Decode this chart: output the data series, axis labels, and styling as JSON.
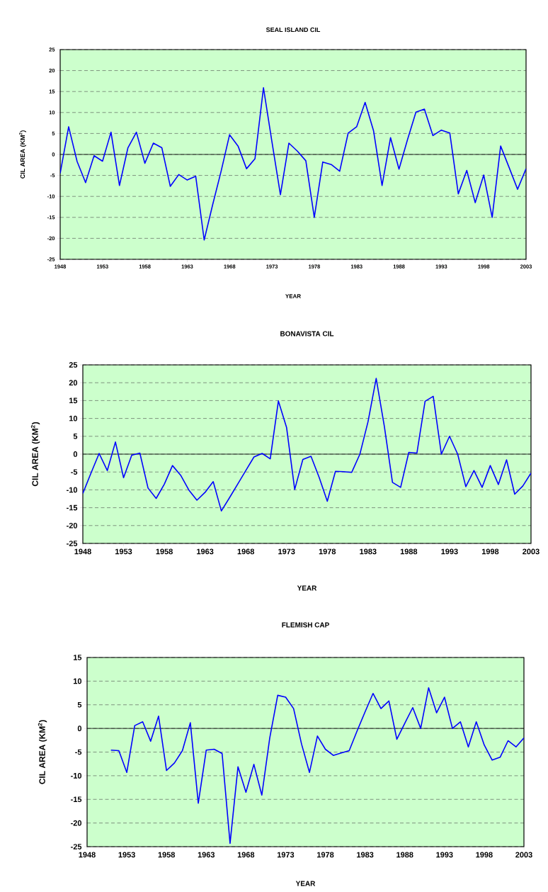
{
  "chart_data": [
    {
      "type": "line",
      "title": "SEAL ISLAND CIL",
      "xlabel": "YEAR",
      "ylabel": "CIL AREA (KM$^{2}$)",
      "x": [
        1948,
        1949,
        1950,
        1951,
        1952,
        1953,
        1954,
        1955,
        1956,
        1957,
        1958,
        1959,
        1960,
        1961,
        1962,
        1963,
        1964,
        1965,
        1966,
        1967,
        1968,
        1969,
        1970,
        1971,
        1972,
        1973,
        1974,
        1975,
        1976,
        1977,
        1978,
        1979,
        1980,
        1981,
        1982,
        1983,
        1984,
        1985,
        1986,
        1987,
        1988,
        1989,
        1990,
        1991,
        1992,
        1993,
        1994,
        1995,
        1996,
        1997,
        1998,
        1999,
        2000,
        2001,
        2002,
        2003
      ],
      "series": [
        {
          "color": "#0000ff",
          "values": [
            -4.5,
            6.6,
            -1.7,
            -6.7,
            -0.3,
            -1.6,
            5.3,
            -7.4,
            1.6,
            5.3,
            -2.1,
            2.7,
            1.6,
            -7.6,
            -4.8,
            -6.1,
            -5.2,
            -20.4,
            -12,
            -4,
            4.7,
            2,
            -3.4,
            -1,
            15.9,
            3,
            -9.6,
            2.7,
            0.8,
            -1.5,
            -15,
            -1.8,
            -2.4,
            -4,
            5.1,
            6.6,
            12.4,
            5.6,
            -7.4,
            4,
            -3.5,
            3.5,
            10.1,
            10.8,
            4.5,
            5.8,
            5.1,
            -9.4,
            -3.8,
            -11.5,
            -4.9,
            -15,
            2,
            -3.1,
            -8.3,
            -3.4
          ]
        }
      ],
      "xlim": [
        1948,
        2003
      ],
      "xticks": [
        1948,
        1953,
        1958,
        1963,
        1968,
        1973,
        1978,
        1983,
        1988,
        1993,
        1998,
        2003
      ],
      "ylim": [
        -25,
        25
      ],
      "yticks": [
        -25,
        -20,
        -15,
        -10,
        -5,
        0,
        5,
        10,
        15,
        20,
        25
      ],
      "grid": "y",
      "ref_lines": [
        {
          "axis": "y",
          "value": 0,
          "color": "#000000",
          "line_style": "solid"
        }
      ]
    },
    {
      "type": "line",
      "title": "BONAVISTA CIL",
      "xlabel": "YEAR",
      "ylabel": "CIL AREA (KM$^{2}$)",
      "x": [
        1948,
        1949,
        1950,
        1951,
        1952,
        1953,
        1954,
        1955,
        1956,
        1957,
        1958,
        1959,
        1960,
        1961,
        1962,
        1963,
        1964,
        1965,
        1966,
        1967,
        1968,
        1969,
        1970,
        1971,
        1972,
        1973,
        1974,
        1975,
        1976,
        1977,
        1978,
        1979,
        1980,
        1981,
        1982,
        1983,
        1984,
        1985,
        1986,
        1987,
        1988,
        1989,
        1990,
        1991,
        1992,
        1993,
        1994,
        1995,
        1996,
        1997,
        1998,
        1999,
        2000,
        2001,
        2002,
        2003
      ],
      "series": [
        {
          "color": "#0000ff",
          "values": [
            -11,
            -5.3,
            0.2,
            -4.6,
            3.4,
            -6.6,
            -0.3,
            0.3,
            -9.5,
            -12.4,
            -8.4,
            -3.2,
            -5.9,
            -10,
            -12.9,
            -10.7,
            -7.7,
            -15.9,
            -12.2,
            -8.4,
            -4.6,
            -0.8,
            0.2,
            -1.3,
            14.9,
            7.5,
            -9.9,
            -1.5,
            -0.6,
            -6.5,
            -13.2,
            -4.8,
            -4.9,
            -5.1,
            0,
            9.1,
            21.2,
            7.8,
            -7.9,
            -9.3,
            0.5,
            0.3,
            14.8,
            16.2,
            0,
            5,
            0,
            -9.1,
            -4.6,
            -9.3,
            -3.2,
            -8.5,
            -1.6,
            -11.2,
            -8.9,
            -5.3
          ]
        }
      ],
      "xlim": [
        1948,
        2003
      ],
      "xticks": [
        1948,
        1953,
        1958,
        1963,
        1968,
        1973,
        1978,
        1983,
        1988,
        1993,
        1998,
        2003
      ],
      "ylim": [
        -25,
        25
      ],
      "yticks": [
        -25,
        -20,
        -15,
        -10,
        -5,
        0,
        5,
        10,
        15,
        20,
        25
      ],
      "grid": "y",
      "ref_lines": [
        {
          "axis": "y",
          "value": 0,
          "color": "#000000",
          "line_style": "solid"
        }
      ]
    },
    {
      "type": "line",
      "title": "FLEMISH CAP",
      "xlabel": "YEAR",
      "ylabel": "CIL AREA (KM$^{2}$)",
      "x": [
        1951,
        1952,
        1953,
        1954,
        1955,
        1956,
        1957,
        1958,
        1959,
        1960,
        1961,
        1962,
        1963,
        1964,
        1965,
        1966,
        1967,
        1968,
        1969,
        1970,
        1971,
        1972,
        1973,
        1974,
        1975,
        1976,
        1977,
        1978,
        1979,
        1980,
        1981,
        1982,
        1983,
        1984,
        1985,
        1986,
        1987,
        1988,
        1989,
        1990,
        1991,
        1992,
        1993,
        1994,
        1995,
        1996,
        1997,
        1998,
        1999,
        2000,
        2001,
        2002,
        2003
      ],
      "series": [
        {
          "color": "#0000ff",
          "values": [
            -4.6,
            -4.7,
            -9.3,
            0.6,
            1.4,
            -2.7,
            2.6,
            -8.9,
            -7.3,
            -4.7,
            1.2,
            -15.8,
            -4.6,
            -4.4,
            -5.3,
            -24.3,
            -8.1,
            -13.5,
            -7.6,
            -14.1,
            -2,
            7,
            6.6,
            4.2,
            -3.3,
            -9.3,
            -1.6,
            -4.4,
            -5.7,
            -5.2,
            -4.7,
            -0.5,
            3.5,
            7.4,
            4.2,
            5.8,
            -2.3,
            1.1,
            4.4,
            0,
            8.6,
            3.3,
            6.6,
            0,
            1.4,
            -3.9,
            1.4,
            -3.5,
            -6.7,
            -6.1,
            -2.6,
            -3.9,
            -2
          ]
        }
      ],
      "xlim": [
        1948,
        2003
      ],
      "xticks": [
        1948,
        1953,
        1958,
        1963,
        1968,
        1973,
        1978,
        1983,
        1988,
        1993,
        1998,
        2003
      ],
      "ylim": [
        -25,
        15
      ],
      "yticks": [
        -25,
        -20,
        -15,
        -10,
        -5,
        0,
        5,
        10,
        15
      ],
      "grid": "y",
      "ref_lines": [
        {
          "axis": "y",
          "value": 0,
          "color": "#000000",
          "line_style": "solid"
        }
      ]
    }
  ]
}
